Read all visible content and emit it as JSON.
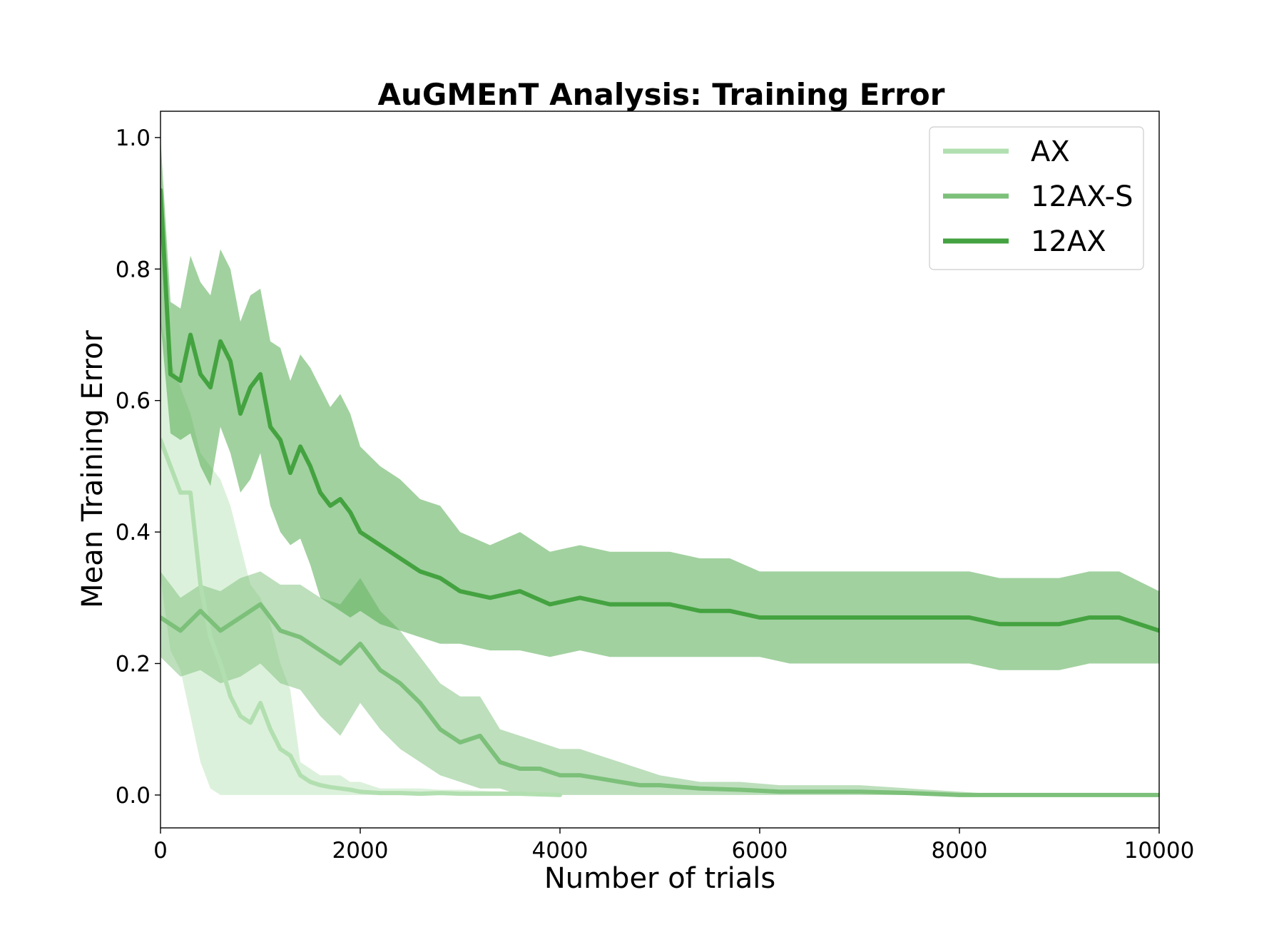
{
  "chart_data": {
    "type": "line",
    "title": "AuGMEnT Analysis: Training Error",
    "xlabel": "Number of trials",
    "ylabel": "Mean Training Error",
    "xlim": [
      0,
      10000
    ],
    "ylim": [
      -0.05,
      1.04
    ],
    "xticks": [
      0,
      2000,
      4000,
      6000,
      8000,
      10000
    ],
    "xtick_labels": [
      "0",
      "2000",
      "4000",
      "6000",
      "8000",
      "10000"
    ],
    "yticks": [
      0.0,
      0.2,
      0.4,
      0.6,
      0.8,
      1.0
    ],
    "ytick_labels": [
      "0.0",
      "0.2",
      "0.4",
      "0.6",
      "0.8",
      "1.0"
    ],
    "grid": false,
    "legend_position": "top-right",
    "series": [
      {
        "name": "AX",
        "color": "#b2dfb0",
        "band_opacity": 0.45,
        "x": [
          0,
          100,
          200,
          300,
          400,
          500,
          600,
          700,
          800,
          900,
          1000,
          1100,
          1200,
          1300,
          1400,
          1500,
          1600,
          1700,
          1800,
          1900,
          2000,
          2200,
          2400,
          2600,
          2800,
          3000,
          3300,
          3600,
          4000
        ],
        "mean": [
          0.54,
          0.5,
          0.46,
          0.46,
          0.32,
          0.24,
          0.2,
          0.15,
          0.12,
          0.11,
          0.14,
          0.1,
          0.07,
          0.06,
          0.03,
          0.02,
          0.015,
          0.012,
          0.01,
          0.008,
          0.005,
          0.003,
          0.003,
          0.002,
          0.003,
          0.002,
          0.002,
          0.002,
          0.0
        ],
        "lower": [
          0.33,
          0.22,
          0.19,
          0.12,
          0.05,
          0.01,
          0.0,
          0.0,
          0.0,
          0.0,
          0.0,
          0.0,
          0.0,
          0.0,
          0.0,
          0.0,
          0.0,
          0.0,
          0.0,
          0.0,
          0.0,
          0.0,
          0.0,
          0.0,
          0.0,
          0.0,
          0.0,
          0.0,
          0.0
        ],
        "upper": [
          0.72,
          0.66,
          0.62,
          0.58,
          0.52,
          0.5,
          0.48,
          0.44,
          0.38,
          0.32,
          0.3,
          0.26,
          0.2,
          0.16,
          0.05,
          0.04,
          0.03,
          0.03,
          0.03,
          0.02,
          0.02,
          0.01,
          0.01,
          0.01,
          0.008,
          0.008,
          0.006,
          0.005,
          0.0
        ]
      },
      {
        "name": "12AX-S",
        "color": "#7cc07a",
        "band_opacity": 0.5,
        "x": [
          0,
          200,
          400,
          600,
          800,
          1000,
          1200,
          1400,
          1600,
          1800,
          2000,
          2200,
          2400,
          2600,
          2800,
          3000,
          3200,
          3400,
          3600,
          3800,
          4000,
          4200,
          4400,
          4600,
          4800,
          5000,
          5400,
          5800,
          6200,
          6600,
          7000,
          7500,
          8000,
          8500,
          9000,
          9500,
          10000
        ],
        "mean": [
          0.27,
          0.25,
          0.28,
          0.25,
          0.27,
          0.29,
          0.25,
          0.24,
          0.22,
          0.2,
          0.23,
          0.19,
          0.17,
          0.14,
          0.1,
          0.08,
          0.09,
          0.05,
          0.04,
          0.04,
          0.03,
          0.03,
          0.025,
          0.02,
          0.015,
          0.015,
          0.01,
          0.008,
          0.005,
          0.005,
          0.005,
          0.003,
          0.0,
          0.0,
          0.0,
          0.0,
          0.0
        ],
        "lower": [
          0.21,
          0.18,
          0.19,
          0.17,
          0.18,
          0.2,
          0.17,
          0.16,
          0.12,
          0.09,
          0.14,
          0.1,
          0.07,
          0.05,
          0.03,
          0.02,
          0.01,
          0.01,
          0.0,
          0.0,
          0.0,
          0.0,
          0.0,
          0.0,
          0.0,
          0.0,
          0.0,
          0.0,
          0.0,
          0.0,
          0.0,
          0.0,
          0.0,
          0.0,
          0.0,
          0.0,
          0.0
        ],
        "upper": [
          0.34,
          0.3,
          0.32,
          0.31,
          0.33,
          0.34,
          0.32,
          0.32,
          0.3,
          0.29,
          0.33,
          0.28,
          0.25,
          0.21,
          0.17,
          0.15,
          0.15,
          0.1,
          0.09,
          0.08,
          0.07,
          0.07,
          0.06,
          0.05,
          0.04,
          0.03,
          0.02,
          0.02,
          0.015,
          0.015,
          0.015,
          0.01,
          0.005,
          0.0,
          0.0,
          0.0,
          0.0
        ]
      },
      {
        "name": "12AX",
        "color": "#44a340",
        "band_opacity": 0.5,
        "x": [
          0,
          100,
          200,
          300,
          400,
          500,
          600,
          700,
          800,
          900,
          1000,
          1100,
          1200,
          1300,
          1400,
          1500,
          1600,
          1700,
          1800,
          1900,
          2000,
          2200,
          2400,
          2600,
          2800,
          3000,
          3300,
          3600,
          3900,
          4200,
          4500,
          4800,
          5100,
          5400,
          5700,
          6000,
          6300,
          6600,
          6900,
          7200,
          7500,
          7800,
          8100,
          8400,
          8700,
          9000,
          9300,
          9600,
          10000
        ],
        "mean": [
          0.92,
          0.64,
          0.63,
          0.7,
          0.64,
          0.62,
          0.69,
          0.66,
          0.58,
          0.62,
          0.64,
          0.56,
          0.54,
          0.49,
          0.53,
          0.5,
          0.46,
          0.44,
          0.45,
          0.43,
          0.4,
          0.38,
          0.36,
          0.34,
          0.33,
          0.31,
          0.3,
          0.31,
          0.29,
          0.3,
          0.29,
          0.29,
          0.29,
          0.28,
          0.28,
          0.27,
          0.27,
          0.27,
          0.27,
          0.27,
          0.27,
          0.27,
          0.27,
          0.26,
          0.26,
          0.26,
          0.27,
          0.27,
          0.25
        ],
        "lower": [
          0.72,
          0.55,
          0.54,
          0.55,
          0.5,
          0.47,
          0.56,
          0.52,
          0.46,
          0.48,
          0.52,
          0.44,
          0.4,
          0.38,
          0.39,
          0.35,
          0.3,
          0.29,
          0.28,
          0.27,
          0.28,
          0.26,
          0.25,
          0.24,
          0.23,
          0.23,
          0.22,
          0.22,
          0.21,
          0.22,
          0.21,
          0.21,
          0.21,
          0.21,
          0.21,
          0.21,
          0.2,
          0.2,
          0.2,
          0.2,
          0.2,
          0.2,
          0.2,
          0.19,
          0.19,
          0.19,
          0.2,
          0.2,
          0.2
        ],
        "upper": [
          1.0,
          0.75,
          0.74,
          0.82,
          0.78,
          0.76,
          0.83,
          0.8,
          0.72,
          0.76,
          0.77,
          0.69,
          0.68,
          0.63,
          0.67,
          0.65,
          0.62,
          0.59,
          0.61,
          0.58,
          0.53,
          0.5,
          0.48,
          0.45,
          0.44,
          0.4,
          0.38,
          0.4,
          0.37,
          0.38,
          0.37,
          0.37,
          0.37,
          0.36,
          0.36,
          0.34,
          0.34,
          0.34,
          0.34,
          0.34,
          0.34,
          0.34,
          0.34,
          0.33,
          0.33,
          0.33,
          0.34,
          0.34,
          0.31
        ]
      }
    ]
  }
}
